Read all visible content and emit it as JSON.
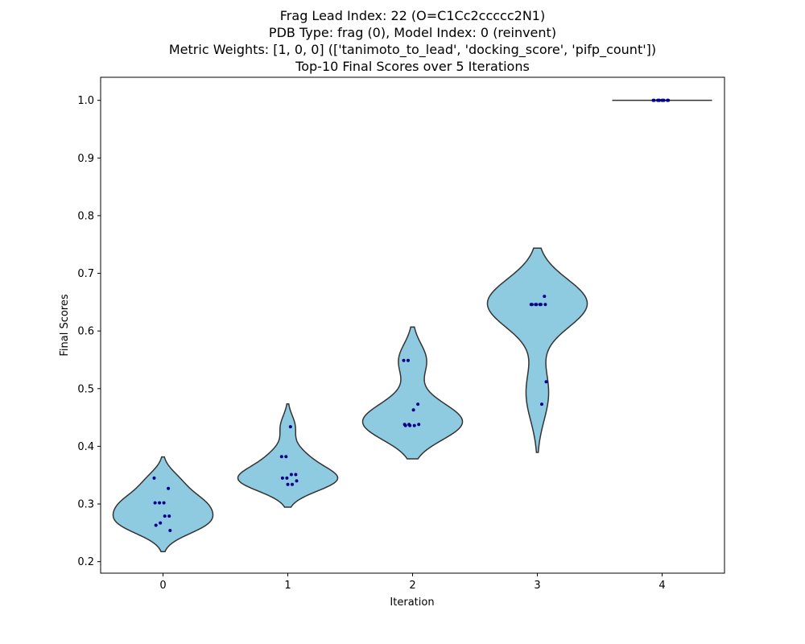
{
  "chart_data": {
    "type": "violin",
    "title_lines": [
      "Frag Lead Index: 22 (O=C1Cc2ccccc2N1)",
      "PDB Type: frag (0), Model Index: 0 (reinvent)",
      "Metric Weights: [1, 0, 0] (['tanimoto_to_lead', 'docking_score', 'pifp_count'])",
      "Top-10 Final Scores over 5 Iterations"
    ],
    "xlabel": "Iteration",
    "ylabel": "Final Scores",
    "categories": [
      "0",
      "1",
      "2",
      "3",
      "4"
    ],
    "ylim": [
      0.18,
      1.04
    ],
    "yticks": [
      "0.2",
      "0.3",
      "0.4",
      "0.5",
      "0.6",
      "0.7",
      "0.8",
      "0.9",
      "1.0"
    ],
    "violin_color": "#8ecae0",
    "edge_color": "#333333",
    "point_color": "#00008b",
    "series": [
      {
        "category": "0",
        "values": [
          0.345,
          0.327,
          0.302,
          0.302,
          0.302,
          0.279,
          0.279,
          0.267,
          0.263,
          0.254
        ]
      },
      {
        "category": "1",
        "values": [
          0.434,
          0.382,
          0.382,
          0.351,
          0.351,
          0.345,
          0.345,
          0.34,
          0.334,
          0.334
        ]
      },
      {
        "category": "2",
        "values": [
          0.549,
          0.549,
          0.473,
          0.463,
          0.438,
          0.438,
          0.438,
          0.436,
          0.436,
          0.436
        ]
      },
      {
        "category": "3",
        "values": [
          0.66,
          0.646,
          0.646,
          0.646,
          0.646,
          0.646,
          0.646,
          0.646,
          0.512,
          0.473
        ]
      },
      {
        "category": "4",
        "values": [
          1.0,
          1.0,
          1.0,
          1.0,
          1.0,
          1.0,
          1.0,
          1.0,
          1.0,
          1.0
        ]
      }
    ]
  }
}
